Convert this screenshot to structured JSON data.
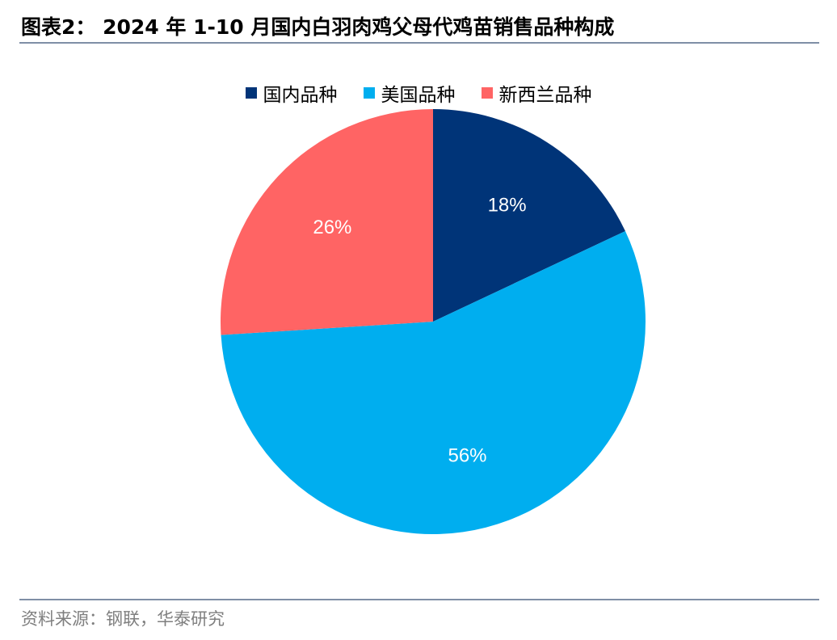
{
  "header": {
    "title": "图表2： 2024 年 1-10 月国内白羽肉鸡父母代鸡苗销售品种构成"
  },
  "footer": {
    "source": "资料来源：钢联，华泰研究"
  },
  "colors": {
    "rule": "#7f8fa6"
  },
  "chart_data": {
    "type": "pie",
    "title": "",
    "legend_position": "top",
    "slices": [
      {
        "name": "国内品种",
        "value": 18,
        "label": "18%",
        "color": "#003478"
      },
      {
        "name": "美国品种",
        "value": 56,
        "label": "56%",
        "color": "#00aeef"
      },
      {
        "name": "新西兰品种",
        "value": 26,
        "label": "26%",
        "color": "#ff6464"
      }
    ]
  }
}
